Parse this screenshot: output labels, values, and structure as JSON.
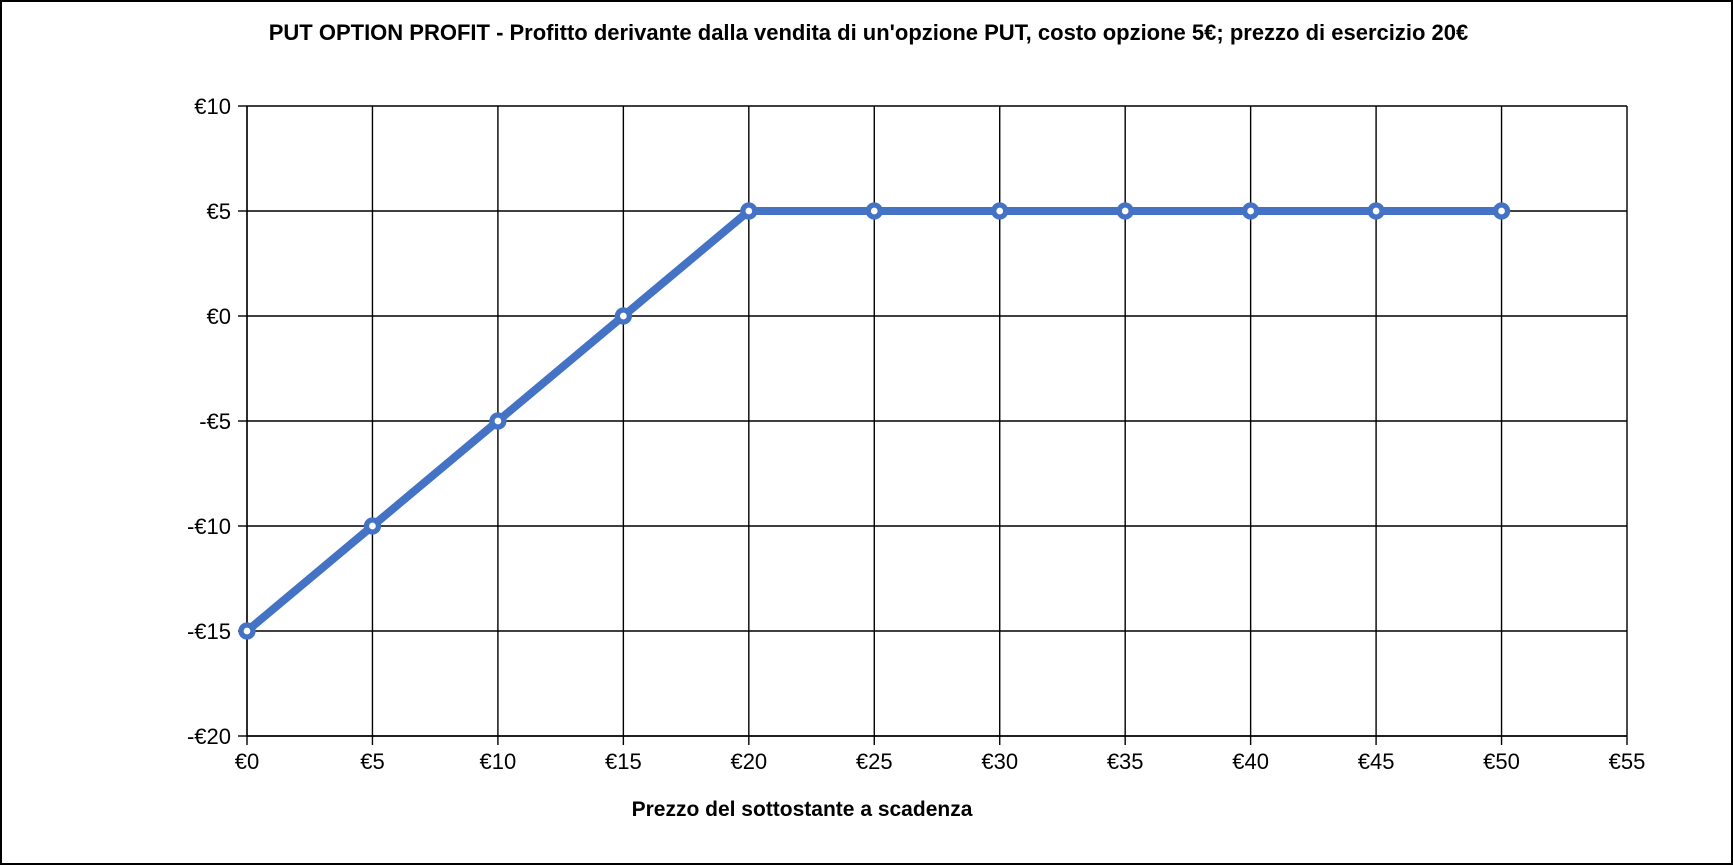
{
  "frame": {
    "background_color": "#ffffff",
    "border_color": "#000000"
  },
  "chart_data": {
    "type": "line",
    "title": "PUT OPTION PROFIT - Profitto derivante dalla vendita di un'opzione PUT, costo opzione 5€; prezzo di esercizio 20€",
    "xlabel": "Prezzo del sottostante a scadenza",
    "ylabel": "",
    "x": [
      0,
      5,
      10,
      15,
      20,
      25,
      30,
      35,
      40,
      45,
      50
    ],
    "y": [
      -15,
      -10,
      -5,
      0,
      5,
      5,
      5,
      5,
      5,
      5,
      5
    ],
    "xlim": [
      0,
      55
    ],
    "ylim": [
      -20,
      10
    ],
    "x_ticks": [
      {
        "v": 0,
        "label": "€0"
      },
      {
        "v": 5,
        "label": "€5"
      },
      {
        "v": 10,
        "label": "€10"
      },
      {
        "v": 15,
        "label": "€15"
      },
      {
        "v": 20,
        "label": "€20"
      },
      {
        "v": 25,
        "label": "€25"
      },
      {
        "v": 30,
        "label": "€30"
      },
      {
        "v": 35,
        "label": "€35"
      },
      {
        "v": 40,
        "label": "€40"
      },
      {
        "v": 45,
        "label": "€45"
      },
      {
        "v": 50,
        "label": "€50"
      },
      {
        "v": 55,
        "label": "€55"
      }
    ],
    "y_ticks": [
      {
        "v": 10,
        "label": "€10"
      },
      {
        "v": 5,
        "label": "€5"
      },
      {
        "v": 0,
        "label": "€0"
      },
      {
        "v": -5,
        "label": "-€5"
      },
      {
        "v": -10,
        "label": "-€10"
      },
      {
        "v": -15,
        "label": "-€15"
      },
      {
        "v": -20,
        "label": "-€20"
      }
    ],
    "grid": "both",
    "legend": "none",
    "line_color": "#4472C4",
    "marker": "open-circle",
    "marker_fill": "#ffffff",
    "grid_color": "#000000",
    "text_color": "#000000"
  }
}
